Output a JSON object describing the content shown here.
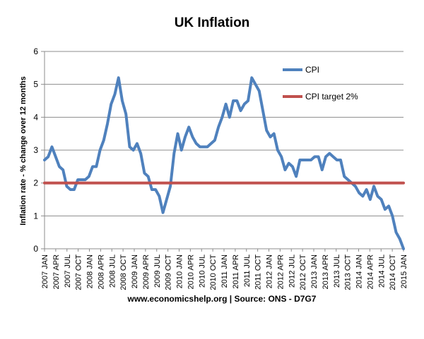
{
  "chart_data": {
    "type": "line",
    "title": "UK Inflation",
    "ylabel": "Inflation rate  - % change over 12 months",
    "xlabel": "",
    "source": "www.economicshelp.org | Source: ONS - D7G7",
    "ylim": [
      0,
      6
    ],
    "y_ticks": [
      0,
      1,
      2,
      3,
      4,
      5,
      6
    ],
    "grid": "horizontal",
    "legend_position": "top-right",
    "x_tick_labels": [
      "2007 JAN",
      "2007 APR",
      "2007 JUL",
      "2007 OCT",
      "2008 JAN",
      "2008 APR",
      "2008 JUL",
      "2008 OCT",
      "2009 JAN",
      "2009 APR",
      "2009 JUL",
      "2009 OCT",
      "2010 JAN",
      "2010 APR",
      "2010 JUL",
      "2010 OCT",
      "2011 JAN",
      "2011 APR",
      "2011 JUL",
      "2011 OCT",
      "2012 JAN",
      "2012 APR",
      "2012 JUL",
      "2012 OCT",
      "2013 JAN",
      "2013 APR",
      "2013 JUL",
      "2013 OCT",
      "2014 JAN",
      "2014 APR",
      "2014 JUL",
      "2014 OCT",
      "2015 JAN"
    ],
    "series": [
      {
        "name": "CPI",
        "color": "#4F81BD",
        "values": [
          2.7,
          2.8,
          3.1,
          2.8,
          2.5,
          2.4,
          1.9,
          1.8,
          1.8,
          2.1,
          2.1,
          2.1,
          2.2,
          2.5,
          2.5,
          3.0,
          3.3,
          3.8,
          4.4,
          4.7,
          5.2,
          4.5,
          4.1,
          3.1,
          3.0,
          3.2,
          2.9,
          2.3,
          2.2,
          1.8,
          1.8,
          1.6,
          1.1,
          1.5,
          1.9,
          2.9,
          3.5,
          3.0,
          3.4,
          3.7,
          3.4,
          3.2,
          3.1,
          3.1,
          3.1,
          3.2,
          3.3,
          3.7,
          4.0,
          4.4,
          4.0,
          4.5,
          4.5,
          4.2,
          4.4,
          4.5,
          5.2,
          5.0,
          4.8,
          4.2,
          3.6,
          3.4,
          3.5,
          3.0,
          2.8,
          2.4,
          2.6,
          2.5,
          2.2,
          2.7,
          2.7,
          2.7,
          2.7,
          2.8,
          2.8,
          2.4,
          2.8,
          2.9,
          2.8,
          2.7,
          2.7,
          2.2,
          2.1,
          2.0,
          1.9,
          1.7,
          1.6,
          1.8,
          1.5,
          1.9,
          1.6,
          1.5,
          1.2,
          1.3,
          1.0,
          0.5,
          0.3,
          0.0
        ]
      },
      {
        "name": "CPI target 2%",
        "color": "#C0504D",
        "values": [
          2,
          2
        ]
      }
    ]
  }
}
